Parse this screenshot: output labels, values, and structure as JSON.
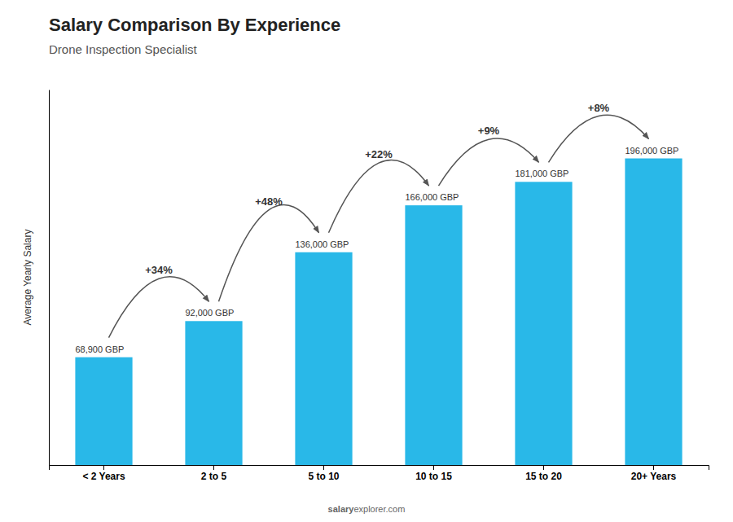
{
  "chart_data": {
    "type": "bar",
    "title": "Salary Comparison By Experience",
    "subtitle": "Drone Inspection Specialist",
    "ylabel": "Average Yearly Salary",
    "categories": [
      "< 2 Years",
      "2 to 5",
      "5 to 10",
      "10 to 15",
      "15 to 20",
      "20+ Years"
    ],
    "values": [
      68900,
      92000,
      136000,
      166000,
      181000,
      196000
    ],
    "value_labels": [
      "68,900 GBP",
      "92,000 GBP",
      "136,000 GBP",
      "166,000 GBP",
      "181,000 GBP",
      "196,000 GBP"
    ],
    "data_labels": true,
    "annotations": [
      "+34%",
      "+48%",
      "+22%",
      "+9%",
      "+8%"
    ],
    "watermark": [
      "salary",
      "explorer.com"
    ],
    "color": "#29B8E8",
    "ylim": [
      0,
      240000
    ],
    "grid": false,
    "tick_labels": "x"
  }
}
